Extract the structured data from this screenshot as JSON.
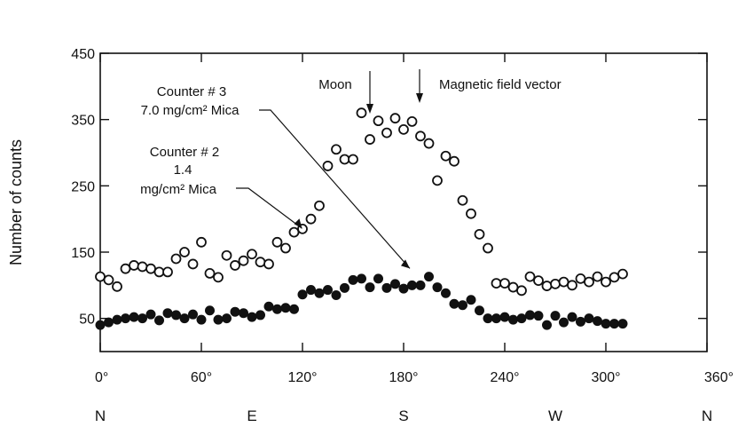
{
  "chart_data": {
    "type": "scatter",
    "ylabel": "Number of counts",
    "xlim": [
      0,
      360
    ],
    "ylim": [
      0,
      450
    ],
    "x_ticks": [
      {
        "value": 0,
        "label": "0°"
      },
      {
        "value": 60,
        "label": "60°"
      },
      {
        "value": 120,
        "label": "120°"
      },
      {
        "value": 180,
        "label": "180°"
      },
      {
        "value": 240,
        "label": "240°"
      },
      {
        "value": 300,
        "label": "300°"
      },
      {
        "value": 360,
        "label": "360°"
      }
    ],
    "y_ticks": [
      {
        "value": 50,
        "label": "50"
      },
      {
        "value": 150,
        "label": "150"
      },
      {
        "value": 250,
        "label": "250"
      },
      {
        "value": 350,
        "label": "350"
      },
      {
        "value": 450,
        "label": "450"
      }
    ],
    "directions": [
      {
        "value": 0,
        "label": "N"
      },
      {
        "value": 90,
        "label": "E"
      },
      {
        "value": 180,
        "label": "S"
      },
      {
        "value": 270,
        "label": "W"
      },
      {
        "value": 360,
        "label": "N"
      }
    ],
    "grid": false,
    "series": [
      {
        "name": "Counter # 2 1.4 mg/cm2 Mica",
        "marker": "open",
        "points": [
          [
            0,
            113
          ],
          [
            5,
            108
          ],
          [
            10,
            98
          ],
          [
            15,
            125
          ],
          [
            20,
            130
          ],
          [
            25,
            128
          ],
          [
            30,
            125
          ],
          [
            35,
            120
          ],
          [
            40,
            120
          ],
          [
            45,
            140
          ],
          [
            50,
            150
          ],
          [
            55,
            132
          ],
          [
            60,
            165
          ],
          [
            65,
            118
          ],
          [
            70,
            112
          ],
          [
            75,
            145
          ],
          [
            80,
            130
          ],
          [
            85,
            137
          ],
          [
            90,
            147
          ],
          [
            95,
            135
          ],
          [
            100,
            132
          ],
          [
            105,
            165
          ],
          [
            110,
            156
          ],
          [
            115,
            180
          ],
          [
            120,
            185
          ],
          [
            125,
            200
          ],
          [
            130,
            220
          ],
          [
            135,
            280
          ],
          [
            140,
            305
          ],
          [
            145,
            290
          ],
          [
            150,
            290
          ],
          [
            155,
            360
          ],
          [
            160,
            320
          ],
          [
            165,
            348
          ],
          [
            170,
            330
          ],
          [
            175,
            352
          ],
          [
            180,
            335
          ],
          [
            185,
            347
          ],
          [
            190,
            325
          ],
          [
            195,
            314
          ],
          [
            200,
            258
          ],
          [
            205,
            295
          ],
          [
            210,
            287
          ],
          [
            215,
            228
          ],
          [
            220,
            208
          ],
          [
            225,
            177
          ],
          [
            230,
            156
          ],
          [
            235,
            103
          ],
          [
            240,
            103
          ],
          [
            245,
            97
          ],
          [
            250,
            92
          ],
          [
            255,
            113
          ],
          [
            260,
            107
          ],
          [
            265,
            99
          ],
          [
            270,
            102
          ],
          [
            275,
            105
          ],
          [
            280,
            100
          ],
          [
            285,
            110
          ],
          [
            290,
            105
          ],
          [
            295,
            113
          ],
          [
            300,
            105
          ],
          [
            305,
            112
          ],
          [
            310,
            117
          ]
        ]
      },
      {
        "name": "Counter # 3 7.0 mg/cm2 Mica",
        "marker": "filled",
        "points": [
          [
            0,
            40
          ],
          [
            5,
            44
          ],
          [
            10,
            48
          ],
          [
            15,
            50
          ],
          [
            20,
            52
          ],
          [
            25,
            50
          ],
          [
            30,
            56
          ],
          [
            35,
            47
          ],
          [
            40,
            58
          ],
          [
            45,
            55
          ],
          [
            50,
            50
          ],
          [
            55,
            56
          ],
          [
            60,
            48
          ],
          [
            65,
            62
          ],
          [
            70,
            48
          ],
          [
            75,
            50
          ],
          [
            80,
            60
          ],
          [
            85,
            58
          ],
          [
            90,
            52
          ],
          [
            95,
            55
          ],
          [
            100,
            68
          ],
          [
            105,
            64
          ],
          [
            110,
            66
          ],
          [
            115,
            64
          ],
          [
            120,
            86
          ],
          [
            125,
            93
          ],
          [
            130,
            88
          ],
          [
            135,
            93
          ],
          [
            140,
            85
          ],
          [
            145,
            96
          ],
          [
            150,
            108
          ],
          [
            155,
            110
          ],
          [
            160,
            97
          ],
          [
            165,
            110
          ],
          [
            170,
            96
          ],
          [
            175,
            102
          ],
          [
            180,
            95
          ],
          [
            185,
            100
          ],
          [
            190,
            100
          ],
          [
            195,
            113
          ],
          [
            200,
            97
          ],
          [
            205,
            88
          ],
          [
            210,
            72
          ],
          [
            215,
            70
          ],
          [
            220,
            78
          ],
          [
            225,
            62
          ],
          [
            230,
            50
          ],
          [
            235,
            50
          ],
          [
            240,
            52
          ],
          [
            245,
            48
          ],
          [
            250,
            50
          ],
          [
            255,
            55
          ],
          [
            260,
            54
          ],
          [
            265,
            40
          ],
          [
            270,
            54
          ],
          [
            275,
            44
          ],
          [
            280,
            52
          ],
          [
            285,
            45
          ],
          [
            290,
            50
          ],
          [
            295,
            46
          ],
          [
            300,
            42
          ],
          [
            305,
            42
          ],
          [
            310,
            42
          ]
        ]
      }
    ],
    "annotations": [
      {
        "lines": [
          "Counter # 3",
          "7.0 mg/cm² Mica"
        ],
        "target": [
          190,
          112
        ]
      },
      {
        "lines": [
          "Counter # 2",
          "1.4",
          "mg/cm² Mica"
        ],
        "target": [
          125,
          167
        ]
      },
      {
        "text": "Moon",
        "arrow_x": 160
      },
      {
        "text": "Magnetic field vector",
        "arrow_x": 190
      }
    ]
  }
}
